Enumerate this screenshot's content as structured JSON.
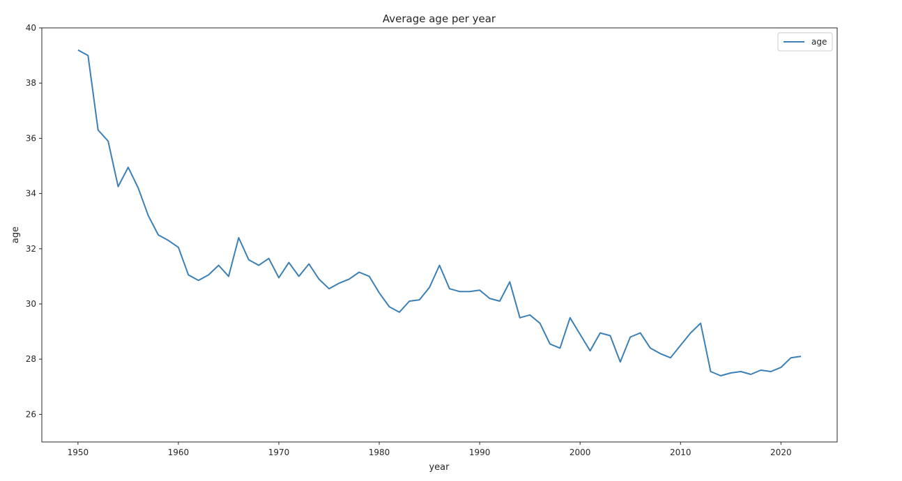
{
  "chart_data": {
    "type": "line",
    "title": "Average age per year",
    "xlabel": "year",
    "ylabel": "age",
    "xlim": [
      1946.4,
      2025.6
    ],
    "ylim": [
      25,
      40
    ],
    "xticks": [
      1950,
      1960,
      1970,
      1980,
      1990,
      2000,
      2010,
      2020
    ],
    "yticks": [
      26,
      28,
      30,
      32,
      34,
      36,
      38,
      40
    ],
    "grid": false,
    "legend": "top-right",
    "colors": {
      "line": "#3b7fb5",
      "axis": "#262626",
      "legend_border": "#cccccc"
    },
    "series": [
      {
        "name": "age",
        "x": [
          1950,
          1951,
          1952,
          1953,
          1954,
          1955,
          1956,
          1957,
          1958,
          1959,
          1960,
          1961,
          1962,
          1963,
          1964,
          1965,
          1966,
          1967,
          1968,
          1969,
          1970,
          1971,
          1972,
          1973,
          1974,
          1975,
          1976,
          1977,
          1978,
          1979,
          1980,
          1981,
          1982,
          1983,
          1984,
          1985,
          1986,
          1987,
          1988,
          1989,
          1990,
          1991,
          1992,
          1993,
          1994,
          1995,
          1996,
          1997,
          1998,
          1999,
          2000,
          2001,
          2002,
          2003,
          2004,
          2005,
          2006,
          2007,
          2008,
          2009,
          2010,
          2011,
          2012,
          2013,
          2014,
          2015,
          2016,
          2017,
          2018,
          2019,
          2020,
          2021,
          2022
        ],
        "y": [
          39.2,
          39.0,
          36.3,
          35.9,
          34.25,
          34.95,
          34.2,
          33.2,
          32.5,
          32.3,
          32.05,
          31.05,
          30.85,
          31.05,
          31.4,
          31.0,
          32.4,
          31.6,
          31.4,
          31.65,
          30.95,
          31.5,
          31.0,
          31.45,
          30.9,
          30.55,
          30.75,
          30.9,
          31.15,
          31.0,
          30.4,
          29.9,
          29.7,
          30.1,
          30.15,
          30.6,
          31.4,
          30.55,
          30.45,
          30.45,
          30.5,
          30.2,
          30.1,
          30.8,
          29.5,
          29.6,
          29.3,
          28.55,
          28.4,
          29.5,
          28.9,
          28.3,
          28.95,
          28.85,
          27.9,
          28.8,
          28.95,
          28.4,
          28.2,
          28.05,
          28.5,
          28.95,
          29.3,
          27.55,
          27.4,
          27.5,
          27.55,
          27.45,
          27.6,
          27.55,
          27.7,
          28.05,
          28.1
        ]
      }
    ]
  }
}
